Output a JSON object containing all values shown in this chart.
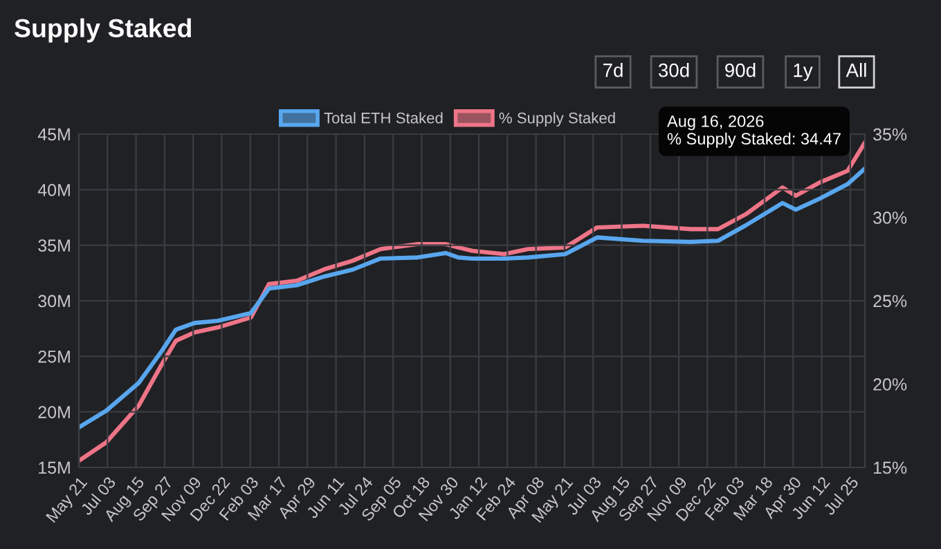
{
  "chart_data": {
    "type": "line",
    "title": "Supply Staked",
    "x": [
      "2023-05-21",
      "2023-07-01",
      "2023-08-19",
      "2023-09-23",
      "2023-10-14",
      "2023-11-11",
      "2023-12-16",
      "2024-02-04",
      "2024-03-02",
      "2024-04-13",
      "2024-05-25",
      "2024-07-06",
      "2024-08-17",
      "2024-10-12",
      "2024-11-23",
      "2024-12-12",
      "2025-01-02",
      "2025-02-19",
      "2025-03-27",
      "2025-05-22",
      "2025-07-09",
      "2025-09-16",
      "2025-11-27",
      "2026-01-07",
      "2026-02-18",
      "2026-04-14",
      "2026-05-04",
      "2026-06-09",
      "2026-07-21",
      "2026-08-16"
    ],
    "series": [
      {
        "name": "Total ETH Staked",
        "color": "#58a6ee",
        "values": [
          18.6,
          20.1,
          22.6,
          25.5,
          27.4,
          28.0,
          28.2,
          28.9,
          31.1,
          31.4,
          32.2,
          32.8,
          33.8,
          33.9,
          34.3,
          33.9,
          33.8,
          33.8,
          33.9,
          34.2,
          35.7,
          35.4,
          35.3,
          35.4,
          36.8,
          38.8,
          38.2,
          39.2,
          40.5,
          41.9
        ]
      },
      {
        "name": "% Supply Staked",
        "color": "#ee7487",
        "axis": "y2",
        "values": [
          15.4,
          16.5,
          18.7,
          21.2,
          22.6,
          23.1,
          23.4,
          24.0,
          26.0,
          26.2,
          26.9,
          27.4,
          28.1,
          28.4,
          28.4,
          28.2,
          28.0,
          27.8,
          28.1,
          28.2,
          29.4,
          29.5,
          29.3,
          29.3,
          30.2,
          31.8,
          31.3,
          32.1,
          32.8,
          34.5
        ]
      }
    ],
    "xlim": [
      "2023-05-21",
      "2026-08-16"
    ],
    "xticks": [
      {
        "value": "2023-05-21",
        "label": "May 21"
      },
      {
        "value": "2023-07-03",
        "label": "Jul 03"
      },
      {
        "value": "2023-08-15",
        "label": "Aug 15"
      },
      {
        "value": "2023-09-27",
        "label": "Sep 27"
      },
      {
        "value": "2023-11-09",
        "label": "Nov 09"
      },
      {
        "value": "2023-12-22",
        "label": "Dec 22"
      },
      {
        "value": "2024-02-03",
        "label": "Feb 03"
      },
      {
        "value": "2024-03-17",
        "label": "Mar 17"
      },
      {
        "value": "2024-04-29",
        "label": "Apr 29"
      },
      {
        "value": "2024-06-11",
        "label": "Jun 11"
      },
      {
        "value": "2024-07-24",
        "label": "Jul 24"
      },
      {
        "value": "2024-09-05",
        "label": "Sep 05"
      },
      {
        "value": "2024-10-18",
        "label": "Oct 18"
      },
      {
        "value": "2024-11-30",
        "label": "Nov 30"
      },
      {
        "value": "2025-01-12",
        "label": "Jan 12"
      },
      {
        "value": "2025-02-24",
        "label": "Feb 24"
      },
      {
        "value": "2025-04-08",
        "label": "Apr 08"
      },
      {
        "value": "2025-05-21",
        "label": "May 21"
      },
      {
        "value": "2025-07-03",
        "label": "Jul 03"
      },
      {
        "value": "2025-08-15",
        "label": "Aug 15"
      },
      {
        "value": "2025-09-27",
        "label": "Sep 27"
      },
      {
        "value": "2025-11-09",
        "label": "Nov 09"
      },
      {
        "value": "2025-12-22",
        "label": "Dec 22"
      },
      {
        "value": "2026-02-03",
        "label": "Feb 03"
      },
      {
        "value": "2026-03-18",
        "label": "Mar 18"
      },
      {
        "value": "2026-04-30",
        "label": "Apr 30"
      },
      {
        "value": "2026-06-12",
        "label": "Jun 12"
      },
      {
        "value": "2026-07-25",
        "label": "Jul 25"
      }
    ],
    "ylim": [
      15,
      45
    ],
    "yticks": [
      {
        "value": 15,
        "label": "15M"
      },
      {
        "value": 20,
        "label": "20M"
      },
      {
        "value": 25,
        "label": "25M"
      },
      {
        "value": 30,
        "label": "30M"
      },
      {
        "value": 35,
        "label": "35M"
      },
      {
        "value": 40,
        "label": "40M"
      },
      {
        "value": 45,
        "label": "45M"
      }
    ],
    "y2lim": [
      15,
      35
    ],
    "y2ticks": [
      {
        "value": 15,
        "label": "15%"
      },
      {
        "value": 20,
        "label": "20%"
      },
      {
        "value": 25,
        "label": "25%"
      },
      {
        "value": 30,
        "label": "30%"
      },
      {
        "value": 35,
        "label": "35%"
      }
    ],
    "grid": true,
    "legend": "top",
    "marker": "none",
    "line_style": "solid",
    "annotations": [
      "7d",
      "30d",
      "90d",
      "1y",
      "All",
      "Aug 16, 2026\n% Supply Staked: 34.47"
    ]
  }
}
